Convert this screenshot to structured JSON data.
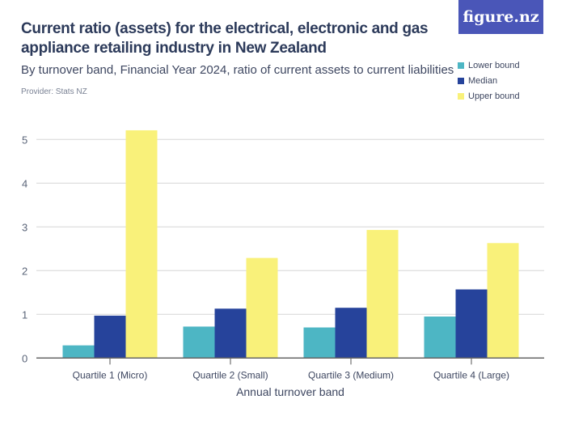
{
  "header": {
    "logo": "figure.nz"
  },
  "chart_data": {
    "type": "bar",
    "title": "Current ratio (assets) for the electrical, electronic and gas appliance retailing industry in New Zealand",
    "subtitle": "By turnover band, Financial Year 2024, ratio of current assets to current liabilities",
    "provider": "Provider: Stats NZ",
    "xlabel": "Annual turnover band",
    "ylabel": "",
    "categories": [
      "Quartile 1 (Micro)",
      "Quartile 2 (Small)",
      "Quartile 3 (Medium)",
      "Quartile 4 (Large)"
    ],
    "series": [
      {
        "name": "Lower bound",
        "color": "#4db6c4",
        "values": [
          0.29,
          0.72,
          0.7,
          0.95
        ]
      },
      {
        "name": "Median",
        "color": "#26439b",
        "values": [
          0.97,
          1.13,
          1.15,
          1.57
        ]
      },
      {
        "name": "Upper bound",
        "color": "#f9f17a",
        "values": [
          5.21,
          2.29,
          2.93,
          2.63
        ]
      }
    ],
    "ylim": [
      0,
      5
    ],
    "yticks": [
      "0",
      "1",
      "2",
      "3",
      "4",
      "5"
    ],
    "grid": true,
    "legend": "top-right"
  }
}
